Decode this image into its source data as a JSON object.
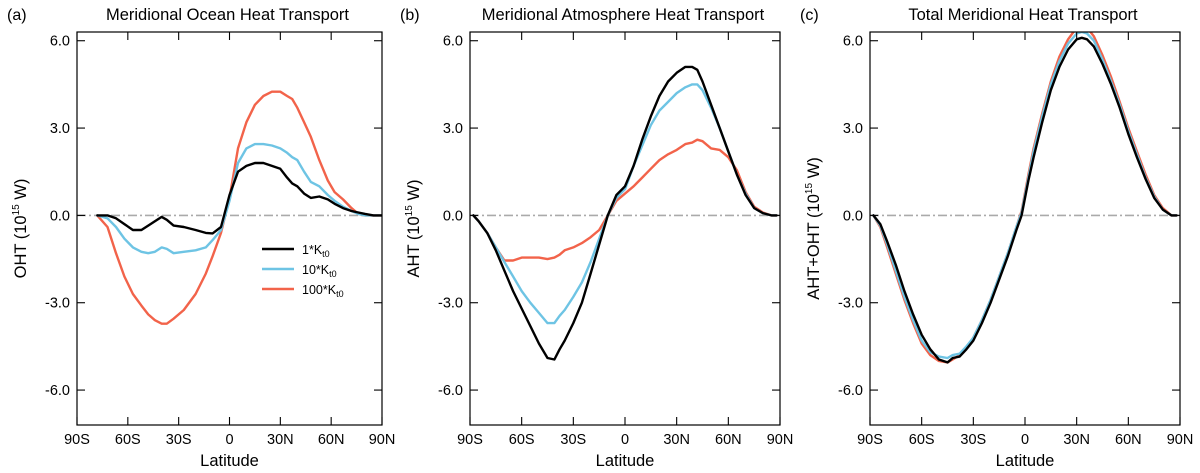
{
  "figure": {
    "x_axis_title": "Latitude",
    "legend": {
      "placement": "center of panel (a)",
      "entries": [
        {
          "label": "1*K",
          "subscript": "t0",
          "color": "#000000"
        },
        {
          "label": "10*K",
          "subscript": "t0",
          "color": "#6ec4e4"
        },
        {
          "label": "100*K",
          "subscript": "t0",
          "color": "#f2634a"
        }
      ]
    }
  },
  "chart_data": [
    {
      "panel_label": "(a)",
      "type": "line",
      "title": "Meridional Ocean Heat Transport",
      "xlabel": "Latitude",
      "ylabel_prefix": "OHT (10",
      "ylabel_exponent": "15",
      "ylabel_suffix": " W)",
      "xlim": [
        -90,
        90
      ],
      "ylim": [
        -7.2,
        6.3
      ],
      "xticks": [
        -90,
        -60,
        -30,
        0,
        30,
        60,
        90
      ],
      "xtick_labels": [
        "90S",
        "60S",
        "30S",
        "0",
        "30N",
        "60N",
        "90N"
      ],
      "yticks": [
        -6,
        -3,
        0,
        3,
        6
      ],
      "ytick_labels": [
        "-6.0",
        "-3.0",
        "0.0",
        "3.0",
        "6.0"
      ],
      "zero_line": true,
      "x": [
        -78,
        -72,
        -67,
        -62,
        -57,
        -52,
        -48,
        -44,
        -40,
        -37,
        -33,
        -27,
        -20,
        -14,
        -10,
        -5,
        0,
        5,
        10,
        15,
        20,
        25,
        30,
        34,
        37,
        40,
        44,
        48,
        53,
        58,
        62,
        67,
        72,
        76,
        80,
        85,
        90
      ],
      "series": [
        {
          "name": "1*Kt0",
          "color": "#000000",
          "values": [
            0,
            0,
            -0.1,
            -0.3,
            -0.5,
            -0.5,
            -0.35,
            -0.2,
            -0.05,
            -0.15,
            -0.35,
            -0.4,
            -0.5,
            -0.6,
            -0.62,
            -0.4,
            0.7,
            1.5,
            1.7,
            1.8,
            1.8,
            1.7,
            1.6,
            1.3,
            1.1,
            1.0,
            0.75,
            0.6,
            0.65,
            0.55,
            0.4,
            0.25,
            0.15,
            0.1,
            0.05,
            0.0,
            0.0
          ]
        },
        {
          "name": "10*Kt0",
          "color": "#6ec4e4",
          "values": [
            0,
            -0.1,
            -0.4,
            -0.8,
            -1.1,
            -1.25,
            -1.3,
            -1.25,
            -1.1,
            -1.15,
            -1.3,
            -1.25,
            -1.2,
            -1.1,
            -0.85,
            -0.5,
            0.5,
            1.8,
            2.3,
            2.45,
            2.45,
            2.4,
            2.3,
            2.15,
            2.0,
            1.9,
            1.5,
            1.15,
            1.0,
            0.7,
            0.5,
            0.3,
            0.15,
            0.05,
            0.0,
            0.0,
            0.0
          ]
        },
        {
          "name": "100*Kt0",
          "color": "#f2634a",
          "values": [
            0,
            -0.4,
            -1.3,
            -2.1,
            -2.7,
            -3.1,
            -3.4,
            -3.6,
            -3.72,
            -3.72,
            -3.55,
            -3.25,
            -2.7,
            -2.0,
            -1.4,
            -0.6,
            0.6,
            2.3,
            3.2,
            3.8,
            4.1,
            4.25,
            4.25,
            4.1,
            4.0,
            3.7,
            3.2,
            2.7,
            1.9,
            1.2,
            0.8,
            0.55,
            0.25,
            0.05,
            0.0,
            0.0,
            0.0
          ]
        }
      ]
    },
    {
      "panel_label": "(b)",
      "type": "line",
      "title": "Meridional Atmosphere Heat Transport",
      "xlabel": "Latitude",
      "ylabel_prefix": "AHT (10",
      "ylabel_exponent": "15",
      "ylabel_suffix": " W)",
      "xlim": [
        -90,
        90
      ],
      "ylim": [
        -7.2,
        6.3
      ],
      "xticks": [
        -90,
        -60,
        -30,
        0,
        30,
        60,
        90
      ],
      "xtick_labels": [
        "90S",
        "60S",
        "30S",
        "0",
        "30N",
        "60N",
        "90N"
      ],
      "yticks": [
        -6,
        -3,
        0,
        3,
        6
      ],
      "ytick_labels": [
        "-6.0",
        "-3.0",
        "0.0",
        "3.0",
        "6.0"
      ],
      "zero_line": true,
      "x": [
        -88,
        -85,
        -80,
        -75,
        -70,
        -65,
        -60,
        -55,
        -50,
        -45,
        -41,
        -38,
        -35,
        -30,
        -25,
        -20,
        -15,
        -10,
        -5,
        0,
        5,
        10,
        15,
        20,
        25,
        30,
        35,
        39,
        42,
        45,
        50,
        55,
        60,
        65,
        70,
        75,
        80,
        85,
        88
      ],
      "series": [
        {
          "name": "1*Kt0",
          "color": "#000000",
          "values": [
            0,
            -0.2,
            -0.6,
            -1.2,
            -1.9,
            -2.6,
            -3.2,
            -3.8,
            -4.4,
            -4.9,
            -4.95,
            -4.6,
            -4.3,
            -3.7,
            -3.0,
            -2.0,
            -1.0,
            0.0,
            0.7,
            1.0,
            1.7,
            2.6,
            3.4,
            4.1,
            4.6,
            4.9,
            5.1,
            5.1,
            5.0,
            4.6,
            3.8,
            3.0,
            2.2,
            1.4,
            0.7,
            0.25,
            0.08,
            0.0,
            0.0
          ]
        },
        {
          "name": "10*Kt0",
          "color": "#6ec4e4",
          "values": [
            0,
            -0.2,
            -0.6,
            -1.1,
            -1.6,
            -2.1,
            -2.6,
            -3.0,
            -3.35,
            -3.7,
            -3.7,
            -3.45,
            -3.25,
            -2.8,
            -2.3,
            -1.6,
            -0.8,
            0.0,
            0.6,
            0.9,
            1.7,
            2.4,
            3.1,
            3.6,
            3.9,
            4.2,
            4.4,
            4.5,
            4.5,
            4.3,
            3.7,
            3.0,
            2.2,
            1.4,
            0.75,
            0.25,
            0.08,
            0.0,
            0.0
          ]
        },
        {
          "name": "100*Kt0",
          "color": "#f2634a",
          "values": [
            0,
            -0.2,
            -0.6,
            -1.1,
            -1.55,
            -1.55,
            -1.45,
            -1.45,
            -1.45,
            -1.5,
            -1.45,
            -1.35,
            -1.2,
            -1.1,
            -0.95,
            -0.75,
            -0.5,
            0.0,
            0.5,
            0.75,
            1.0,
            1.3,
            1.6,
            1.9,
            2.1,
            2.25,
            2.45,
            2.5,
            2.6,
            2.55,
            2.3,
            2.25,
            2.0,
            1.55,
            0.8,
            0.3,
            0.1,
            0.0,
            0.0
          ]
        }
      ]
    },
    {
      "panel_label": "(c)",
      "type": "line",
      "title": "Total Meridional Heat Transport",
      "xlabel": "Latitude",
      "ylabel_prefix": "AHT+OHT (10",
      "ylabel_exponent": "15",
      "ylabel_suffix": " W)",
      "xlim": [
        -90,
        90
      ],
      "ylim": [
        -7.2,
        6.3
      ],
      "xticks": [
        -90,
        -60,
        -30,
        0,
        30,
        60,
        90
      ],
      "xtick_labels": [
        "90S",
        "60S",
        "30S",
        "0",
        "30N",
        "60N",
        "90N"
      ],
      "yticks": [
        -6,
        -3,
        0,
        3,
        6
      ],
      "ytick_labels": [
        "-6.0",
        "-3.0",
        "0.0",
        "3.0",
        "6.0"
      ],
      "zero_line": true,
      "x": [
        -88,
        -84,
        -80,
        -75,
        -70,
        -65,
        -60,
        -55,
        -50,
        -45,
        -42,
        -38,
        -34,
        -30,
        -25,
        -20,
        -15,
        -10,
        -5,
        -2,
        2,
        5,
        10,
        15,
        20,
        25,
        30,
        33,
        36,
        40,
        45,
        50,
        55,
        60,
        65,
        70,
        75,
        80,
        85,
        88
      ],
      "series": [
        {
          "name": "1*Kt0",
          "color": "#000000",
          "values": [
            0,
            -0.3,
            -0.9,
            -1.7,
            -2.6,
            -3.4,
            -4.1,
            -4.6,
            -4.95,
            -5.05,
            -4.9,
            -4.85,
            -4.6,
            -4.3,
            -3.7,
            -3.0,
            -2.2,
            -1.4,
            -0.5,
            0.0,
            1.2,
            2.0,
            3.2,
            4.3,
            5.1,
            5.7,
            6.05,
            6.1,
            6.05,
            5.8,
            5.2,
            4.5,
            3.7,
            2.8,
            2.0,
            1.25,
            0.6,
            0.2,
            0.0,
            0.0
          ]
        },
        {
          "name": "10*Kt0",
          "color": "#6ec4e4",
          "values": [
            0,
            -0.35,
            -1.0,
            -1.9,
            -2.8,
            -3.6,
            -4.3,
            -4.7,
            -4.85,
            -4.9,
            -4.8,
            -4.75,
            -4.5,
            -4.2,
            -3.6,
            -2.9,
            -2.1,
            -1.3,
            -0.4,
            0.1,
            1.3,
            2.2,
            3.4,
            4.5,
            5.3,
            5.9,
            6.25,
            6.3,
            6.25,
            6.0,
            5.35,
            4.6,
            3.8,
            2.9,
            2.1,
            1.3,
            0.65,
            0.2,
            0.0,
            0.0
          ]
        },
        {
          "name": "100*Kt0",
          "color": "#f2634a",
          "values": [
            0,
            -0.4,
            -1.1,
            -2.0,
            -2.9,
            -3.7,
            -4.4,
            -4.8,
            -5.0,
            -5.05,
            -4.95,
            -4.8,
            -4.55,
            -4.2,
            -3.6,
            -2.9,
            -2.1,
            -1.3,
            -0.4,
            0.15,
            1.4,
            2.3,
            3.5,
            4.6,
            5.45,
            6.05,
            6.45,
            6.5,
            6.45,
            6.15,
            5.5,
            4.75,
            3.9,
            3.0,
            2.2,
            1.4,
            0.7,
            0.25,
            0.0,
            0.0
          ]
        }
      ]
    }
  ]
}
